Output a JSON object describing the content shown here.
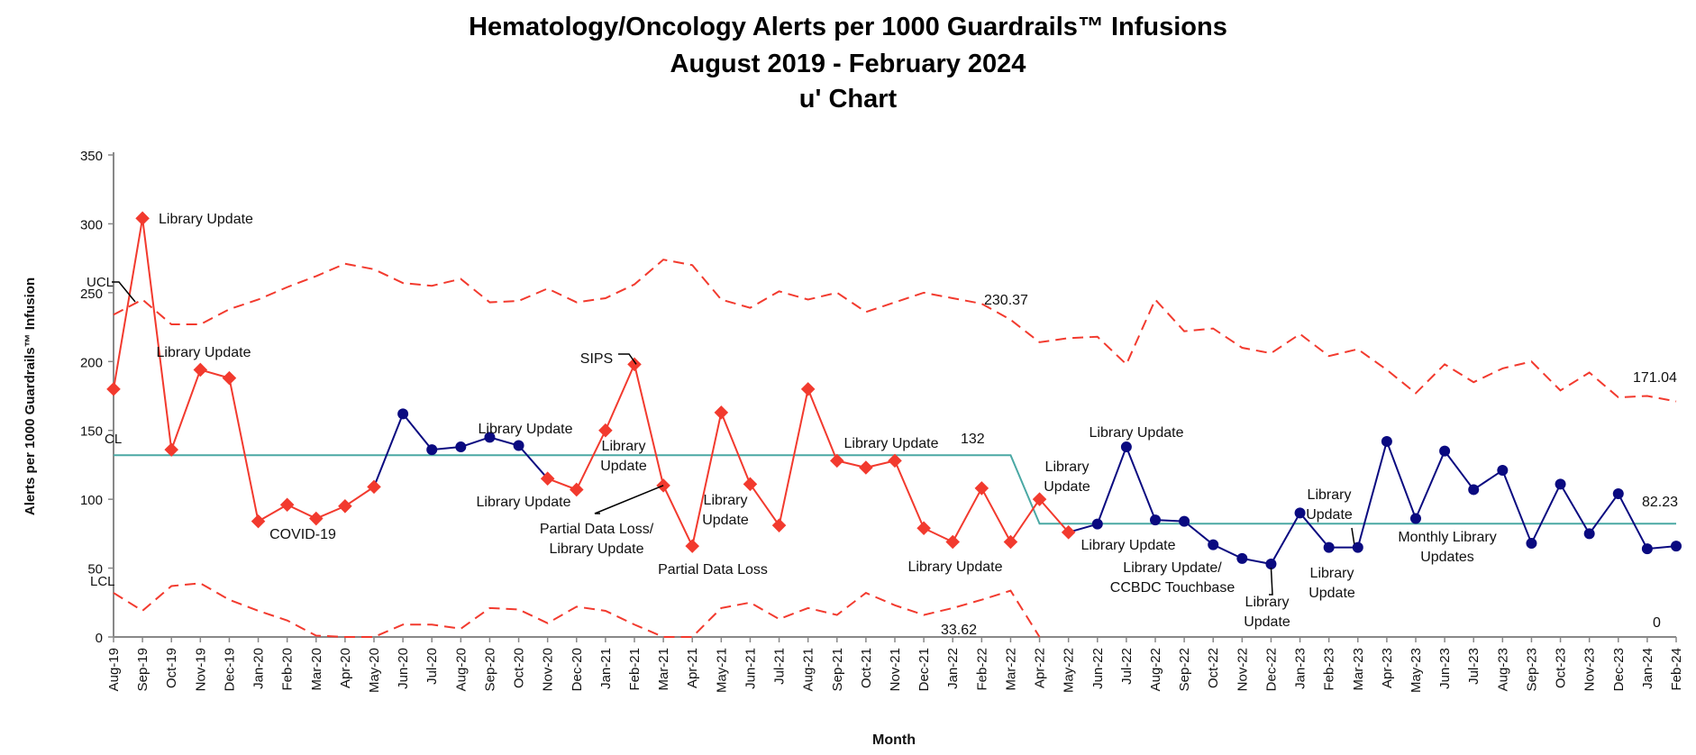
{
  "chart_data": {
    "type": "line",
    "title": [
      "Hematology/Oncology Alerts per 1000 Guardrails™ Infusions",
      "August 2019 - February 2024",
      "u' Chart"
    ],
    "xlabel": "Month",
    "ylabel": "Alerts per 1000  Guardrails™ Infusion",
    "ylim": [
      0,
      350
    ],
    "yticks": [
      0,
      50,
      100,
      150,
      200,
      250,
      300,
      350
    ],
    "grid": false,
    "categories": [
      "Aug-19",
      "Sep-19",
      "Oct-19",
      "Nov-19",
      "Dec-19",
      "Jan-20",
      "Feb-20",
      "Mar-20",
      "Apr-20",
      "May-20",
      "Jun-20",
      "Jul-20",
      "Aug-20",
      "Sep-20",
      "Oct-20",
      "Nov-20",
      "Dec-20",
      "Jan-21",
      "Feb-21",
      "Mar-21",
      "Apr-21",
      "May-21",
      "Jun-21",
      "Jul-21",
      "Aug-21",
      "Sep-21",
      "Oct-21",
      "Nov-21",
      "Dec-21",
      "Jan-22",
      "Feb-22",
      "Mar-22",
      "Apr-22",
      "May-22",
      "Jun-22",
      "Jul-22",
      "Aug-22",
      "Sep-22",
      "Oct-22",
      "Nov-22",
      "Dec-22",
      "Jan-23",
      "Feb-23",
      "Mar-23",
      "Apr-23",
      "May-23",
      "Jun-23",
      "Jul-23",
      "Aug-23",
      "Sep-23",
      "Oct-23",
      "Nov-23",
      "Dec-23",
      "Jan-24",
      "Feb-24"
    ],
    "series": [
      {
        "role": "rate",
        "values": [
          180,
          304,
          136,
          194,
          188,
          84,
          96,
          86,
          95,
          109,
          162,
          136,
          138,
          145,
          139,
          115,
          107,
          150,
          198,
          110,
          66,
          163,
          111,
          81,
          180,
          128,
          123,
          128,
          79,
          69,
          108,
          69,
          100,
          76,
          82,
          138,
          85,
          84,
          67,
          57,
          53,
          90,
          65,
          65,
          142,
          86,
          135,
          107,
          121,
          68,
          111,
          75,
          104,
          64,
          66
        ],
        "special_cause": [
          false,
          false,
          false,
          false,
          false,
          false,
          false,
          false,
          false,
          false,
          true,
          true,
          true,
          true,
          true,
          false,
          false,
          false,
          false,
          false,
          false,
          false,
          false,
          false,
          false,
          false,
          false,
          false,
          false,
          false,
          false,
          false,
          false,
          false,
          true,
          true,
          true,
          true,
          true,
          true,
          true,
          true,
          true,
          true,
          true,
          true,
          true,
          true,
          true,
          true,
          true,
          true,
          true,
          true,
          true
        ]
      },
      {
        "name": "UCL",
        "values": [
          234,
          245,
          227,
          227,
          238,
          245,
          254,
          262,
          271,
          267,
          257,
          255,
          260,
          243,
          244,
          253,
          243,
          246,
          256,
          274,
          270,
          245,
          239,
          251,
          245,
          250,
          236,
          243,
          250,
          246,
          242,
          230.37,
          214,
          217,
          218,
          198,
          245,
          222,
          224,
          210,
          206,
          220,
          204,
          209,
          194,
          177,
          198,
          185,
          195,
          200,
          179,
          192,
          174,
          175,
          171.04
        ]
      },
      {
        "name": "CL",
        "values": [
          132,
          132,
          132,
          132,
          132,
          132,
          132,
          132,
          132,
          132,
          132,
          132,
          132,
          132,
          132,
          132,
          132,
          132,
          132,
          132,
          132,
          132,
          132,
          132,
          132,
          132,
          132,
          132,
          132,
          132,
          132,
          132,
          82.23,
          82.23,
          82.23,
          82.23,
          82.23,
          82.23,
          82.23,
          82.23,
          82.23,
          82.23,
          82.23,
          82.23,
          82.23,
          82.23,
          82.23,
          82.23,
          82.23,
          82.23,
          82.23,
          82.23,
          82.23,
          82.23,
          82.23
        ]
      },
      {
        "name": "LCL",
        "values": [
          32,
          19,
          37,
          39,
          27,
          19,
          12,
          1,
          0,
          0,
          9,
          9,
          6,
          21,
          20,
          10,
          22,
          19,
          9,
          0,
          0,
          21,
          25,
          13,
          21,
          16,
          32,
          23,
          16,
          21,
          27,
          33.62,
          0,
          0,
          0,
          0,
          0,
          0,
          0,
          0,
          0,
          0,
          0,
          0,
          0,
          0,
          0,
          0,
          0,
          0,
          0,
          0,
          0,
          0,
          0
        ]
      }
    ],
    "line_labels": {
      "ucl": "UCL",
      "cl": "CL",
      "lcl": "LCL"
    },
    "value_labels": [
      "132",
      "230.37",
      "33.62",
      "171.04",
      "82.23",
      "0"
    ],
    "annotations": [
      [
        "Library Update"
      ],
      [
        "Library Update"
      ],
      [
        "COVID-19"
      ],
      [
        "Library Update"
      ],
      [
        "Library Update"
      ],
      [
        "SIPS"
      ],
      [
        "Library",
        "Update"
      ],
      [
        "Partial Data Loss/",
        "Library Update"
      ],
      [
        "Partial Data Loss"
      ],
      [
        "Library",
        "Update"
      ],
      [
        "Library Update"
      ],
      [
        "Library Update"
      ],
      [
        "Library",
        "Update"
      ],
      [
        "Library Update"
      ],
      [
        "Library Update"
      ],
      [
        "Library Update/",
        "CCBDC Touchbase"
      ],
      [
        "Library",
        "Update"
      ],
      [
        "Library",
        "Update"
      ],
      [
        "Library",
        "Update"
      ],
      [
        "Monthly Library",
        "Updates"
      ]
    ],
    "colors": {
      "normal": "#f23a2e",
      "special": "#0a0a80",
      "cl": "#4aa8a4",
      "limits": "#f23a2e",
      "axis": "#888888"
    }
  }
}
